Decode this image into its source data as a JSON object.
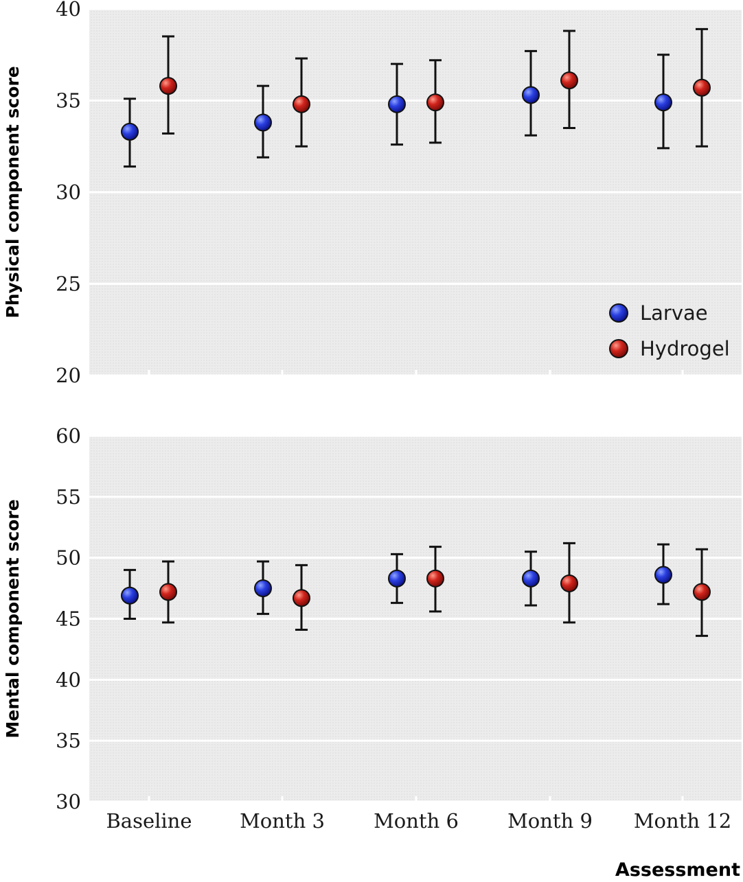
{
  "chart_data": [
    {
      "type": "scatter",
      "ylabel": "Physical component score",
      "ylim": [
        20,
        40
      ],
      "yticks": [
        20,
        25,
        30,
        35,
        40
      ],
      "categories": [
        "Baseline",
        "Month 3",
        "Month 6",
        "Month 9",
        "Month 12"
      ],
      "legend": {
        "placement": "bottom-right"
      },
      "series": [
        {
          "name": "Larvae",
          "color": "#1f2fd0",
          "values": [
            33.3,
            33.8,
            34.8,
            35.3,
            34.9
          ],
          "lower": [
            31.4,
            31.9,
            32.6,
            33.1,
            32.4
          ],
          "upper": [
            35.1,
            35.8,
            37.0,
            37.7,
            37.5
          ]
        },
        {
          "name": "Hydrogel",
          "color": "#c81e1e",
          "values": [
            35.8,
            34.8,
            34.9,
            36.1,
            35.7
          ],
          "lower": [
            33.2,
            32.5,
            32.7,
            33.5,
            32.5
          ],
          "upper": [
            38.5,
            37.3,
            37.2,
            38.8,
            38.9
          ]
        }
      ]
    },
    {
      "type": "scatter",
      "ylabel": "Mental component score",
      "xlabel": "Assessment",
      "ylim": [
        30,
        60
      ],
      "yticks": [
        30,
        35,
        40,
        45,
        50,
        55,
        60
      ],
      "categories": [
        "Baseline",
        "Month 3",
        "Month 6",
        "Month 9",
        "Month 12"
      ],
      "series": [
        {
          "name": "Larvae",
          "color": "#1f2fd0",
          "values": [
            46.9,
            47.5,
            48.3,
            48.3,
            48.6
          ],
          "lower": [
            45.0,
            45.4,
            46.3,
            46.1,
            46.2
          ],
          "upper": [
            49.0,
            49.7,
            50.3,
            50.5,
            51.1
          ]
        },
        {
          "name": "Hydrogel",
          "color": "#c81e1e",
          "values": [
            47.2,
            46.7,
            48.3,
            47.9,
            47.2
          ],
          "lower": [
            44.7,
            44.1,
            45.6,
            44.7,
            43.6
          ],
          "upper": [
            49.7,
            49.4,
            50.9,
            51.2,
            50.7
          ]
        }
      ]
    }
  ]
}
